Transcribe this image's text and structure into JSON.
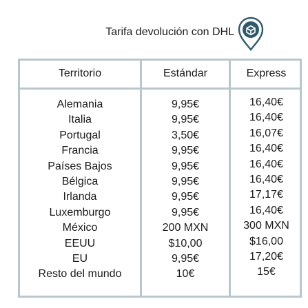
{
  "title": "Tarifa devolución con DHL",
  "icon": "dhl-location-pin-icon",
  "accent_color": "#2f5a6a",
  "headers": {
    "territory": "Territorio",
    "standard": "Estándar",
    "express": "Express"
  },
  "rows": [
    {
      "territory": "Alemania",
      "standard": "9,95€",
      "express": "16,40€"
    },
    {
      "territory": "Italia",
      "standard": "9,95€",
      "express": "16,40€"
    },
    {
      "territory": "Portugal",
      "standard": "3,50€",
      "express": "16,07€"
    },
    {
      "territory": "Francia",
      "standard": "9,95€",
      "express": "16,40€"
    },
    {
      "territory": "Países Bajos",
      "standard": "9,95€",
      "express": "16,40€"
    },
    {
      "territory": "Bélgica",
      "standard": "9,95€",
      "express": "16,40€"
    },
    {
      "territory": "Irlanda",
      "standard": "9,95€",
      "express": "17,17€"
    },
    {
      "territory": "Luxemburgo",
      "standard": "9,95€",
      "express": "16,40€"
    },
    {
      "territory": "México",
      "standard": "200 MXN",
      "express": "300 MXN"
    },
    {
      "territory": "EEUU",
      "standard": "$10,00",
      "express": "$16,00"
    },
    {
      "territory": "EU",
      "standard": "9,95€",
      "express": "17,20€"
    },
    {
      "territory": "Resto del mundo",
      "standard": "10€",
      "express": "15€"
    }
  ]
}
